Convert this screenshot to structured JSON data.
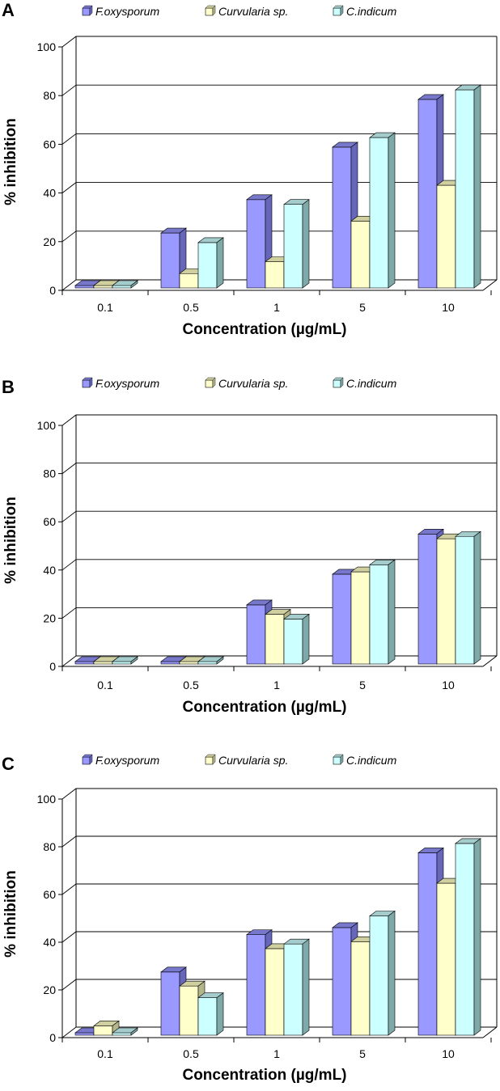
{
  "chart_data": [
    {
      "type": "bar",
      "panel_label": "A",
      "categories": [
        "0.1",
        "0.5",
        "1",
        "5",
        "10"
      ],
      "series": [
        {
          "name": "F.oxysporum",
          "values": [
            0,
            22,
            36,
            58,
            78
          ]
        },
        {
          "name": "Curvularia sp.",
          "values": [
            0,
            5,
            10,
            27,
            42
          ]
        },
        {
          "name": "C.indicum",
          "values": [
            0,
            18,
            34,
            62,
            82
          ]
        }
      ],
      "xlabel": "Concentration (µg/mL)",
      "ylabel": "% inhibition",
      "ylim": [
        0,
        100
      ],
      "yticks": [
        "0",
        "20",
        "40",
        "60",
        "80",
        "100"
      ],
      "grid": true,
      "legend": "top"
    },
    {
      "type": "bar",
      "panel_label": "B",
      "categories": [
        "0.1",
        "0.5",
        "1",
        "5",
        "10"
      ],
      "series": [
        {
          "name": "F.oxysporum",
          "values": [
            0,
            0,
            24,
            37,
            54
          ]
        },
        {
          "name": "Curvularia sp.",
          "values": [
            0,
            0,
            20,
            38,
            52
          ]
        },
        {
          "name": "C.indicum",
          "values": [
            0,
            0,
            18,
            41,
            53
          ]
        }
      ],
      "xlabel": "Concentration (µg/mL)",
      "ylabel": "% inhibition",
      "ylim": [
        0,
        100
      ],
      "yticks": [
        "0",
        "20",
        "40",
        "60",
        "80",
        "100"
      ],
      "grid": true,
      "legend": "top"
    },
    {
      "type": "bar",
      "panel_label": "C",
      "categories": [
        "0.1",
        "0.5",
        "1",
        "5",
        "10"
      ],
      "series": [
        {
          "name": "F.oxysporum",
          "values": [
            0,
            26,
            42,
            45,
            77
          ]
        },
        {
          "name": "Curvularia sp.",
          "values": [
            3,
            20,
            36,
            39,
            64
          ]
        },
        {
          "name": "C.indicum",
          "values": [
            0,
            15,
            38,
            50,
            81
          ]
        }
      ],
      "xlabel": "Concentration (µg/mL)",
      "ylabel": "% inhibition",
      "ylim": [
        0,
        100
      ],
      "yticks": [
        "0",
        "20",
        "40",
        "60",
        "80",
        "100"
      ],
      "grid": true,
      "legend": "top"
    }
  ],
  "colors": {
    "F.oxysporum": {
      "front": "#9999ff",
      "side": "#6666bb",
      "top": "#7777cc"
    },
    "Curvularia sp.": {
      "front": "#ffffcc",
      "side": "#b5b58a",
      "top": "#cfcf9f"
    },
    "C.indicum": {
      "front": "#ccffff",
      "side": "#7fa8a8",
      "top": "#a5cccc"
    },
    "axis": "#000000",
    "grid": "#000000"
  }
}
